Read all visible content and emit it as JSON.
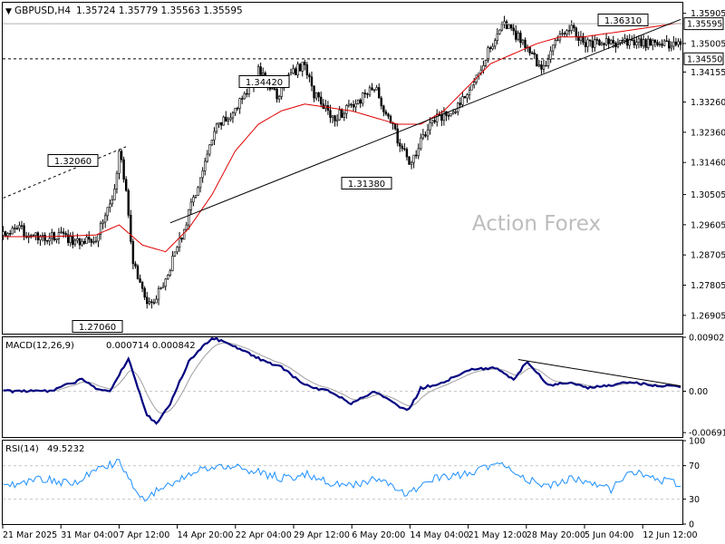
{
  "header": {
    "symbol_text": "GBPUSD,H4",
    "ohlc_text": "1.35724 1.35779 1.35563 1.35595"
  },
  "watermark": "Action Forex",
  "colors": {
    "candle": "#000000",
    "ma": "#e00000",
    "macd": "#000080",
    "signal": "#a0a0a0",
    "rsi": "#1e90ff",
    "trend": "#000000"
  },
  "chart_data": [
    {
      "type": "candlestick",
      "title": "GBPUSD,H4",
      "ylim": [
        1.2636,
        1.3622
      ],
      "y_ticks": [
        "1.35905",
        "1.35005",
        "1.34155",
        "1.33260",
        "1.32360",
        "1.31460",
        "1.30505",
        "1.29605",
        "1.28705",
        "1.27805",
        "1.26905"
      ],
      "price_tags": {
        "last": "1.35595",
        "level": "1.34550"
      },
      "x_tick_labels": [
        "21 Mar 2025",
        "31 Mar 04:00",
        "7 Apr 12:00",
        "14 Apr 20:00",
        "22 Apr 04:00",
        "29 Apr 12:00",
        "6 May 20:00",
        "14 May 04:00",
        "21 May 12:00",
        "28 May 20:00",
        "5 Jun 04:00",
        "12 Jun 12:00"
      ],
      "annotations": [
        "1.36310",
        "1.34420",
        "1.32060",
        "1.31380",
        "1.27060"
      ],
      "key_points": {
        "index": [
          0,
          8,
          16,
          24,
          32,
          40,
          48,
          50,
          53,
          56,
          60,
          64,
          70,
          78,
          85,
          92,
          100,
          110,
          118,
          124,
          130,
          134,
          142,
          150,
          160,
          166,
          175,
          185,
          195,
          205,
          215,
          225,
          232,
          238,
          245,
          250
        ],
        "close": [
          1.2935,
          1.2945,
          1.2915,
          1.293,
          1.291,
          1.2925,
          1.306,
          1.319,
          1.305,
          1.285,
          1.276,
          1.272,
          1.28,
          1.295,
          1.31,
          1.325,
          1.33,
          1.342,
          1.334,
          1.341,
          1.344,
          1.335,
          1.328,
          1.331,
          1.337,
          1.328,
          1.314,
          1.327,
          1.33,
          1.342,
          1.356,
          1.35,
          1.342,
          1.35,
          1.356,
          1.35
        ]
      },
      "ma_key_points": {
        "index": [
          0,
          20,
          40,
          50,
          60,
          70,
          80,
          90,
          100,
          110,
          120,
          130,
          140,
          150,
          160,
          170,
          180,
          190,
          200,
          210,
          220,
          230,
          240,
          250,
          290
        ],
        "value": [
          1.2925,
          1.2925,
          1.293,
          1.296,
          1.29,
          1.288,
          1.295,
          1.305,
          1.318,
          1.326,
          1.33,
          1.332,
          1.331,
          1.33,
          1.328,
          1.326,
          1.326,
          1.33,
          1.337,
          1.344,
          1.347,
          1.35,
          1.352,
          1.352,
          1.356
        ]
      },
      "trendlines": [
        {
          "from": [
            72,
            1.2966
          ],
          "to": [
            244,
            1.344
          ],
          "extend_to": 292
        },
        {
          "from": [
            0,
            1.304
          ],
          "to": [
            54,
            1.3196
          ],
          "style": "dashed"
        }
      ],
      "hlines": [
        {
          "y": 1.35595,
          "style": "solid"
        },
        {
          "y": 1.3455,
          "style": "dashed"
        }
      ]
    },
    {
      "type": "line",
      "name": "MACD(12,26,9)",
      "values_text": "0.000714 0.000842",
      "ylim": [
        -0.00765,
        0.00902
      ],
      "y_ticks": [
        "0.00902",
        "0.00",
        "-0.006915"
      ],
      "key_points": {
        "index": [
          0,
          20,
          34,
          40,
          46,
          54,
          62,
          66,
          72,
          80,
          90,
          100,
          110,
          120,
          130,
          140,
          150,
          160,
          170,
          175,
          180,
          190,
          200,
          212,
          220,
          226,
          235,
          245,
          252,
          270,
          285,
          290
        ],
        "macd": [
          0.0,
          0.0,
          0.002,
          0.0005,
          0.0,
          0.0055,
          -0.004,
          -0.0055,
          -0.002,
          0.005,
          0.009,
          0.0075,
          0.0055,
          0.004,
          0.001,
          0.0,
          -0.002,
          0.0,
          -0.0025,
          -0.003,
          0.0005,
          0.0015,
          0.0035,
          0.004,
          0.002,
          0.005,
          0.001,
          0.0015,
          0.0005,
          0.0015,
          0.0008,
          0.0009
        ]
      },
      "trendline": {
        "from": [
          222,
          0.0053
        ],
        "to": [
          292,
          0.0009
        ]
      }
    },
    {
      "type": "line",
      "name": "RSI(14)",
      "value_text": "49.5232",
      "ylim": [
        0,
        100
      ],
      "y_ticks": [
        "100",
        "70",
        "30",
        "0"
      ],
      "levels": [
        70,
        30
      ],
      "key_points": {
        "index": [
          0,
          15,
          30,
          40,
          50,
          55,
          60,
          70,
          80,
          90,
          100,
          110,
          120,
          130,
          140,
          150,
          160,
          170,
          175,
          185,
          200,
          215,
          225,
          235,
          245,
          255,
          262,
          270,
          280,
          290
        ],
        "value": [
          45,
          55,
          48,
          65,
          75,
          50,
          30,
          45,
          60,
          68,
          70,
          62,
          55,
          60,
          50,
          45,
          55,
          40,
          35,
          55,
          60,
          75,
          55,
          45,
          55,
          50,
          40,
          65,
          55,
          50
        ]
      }
    }
  ]
}
